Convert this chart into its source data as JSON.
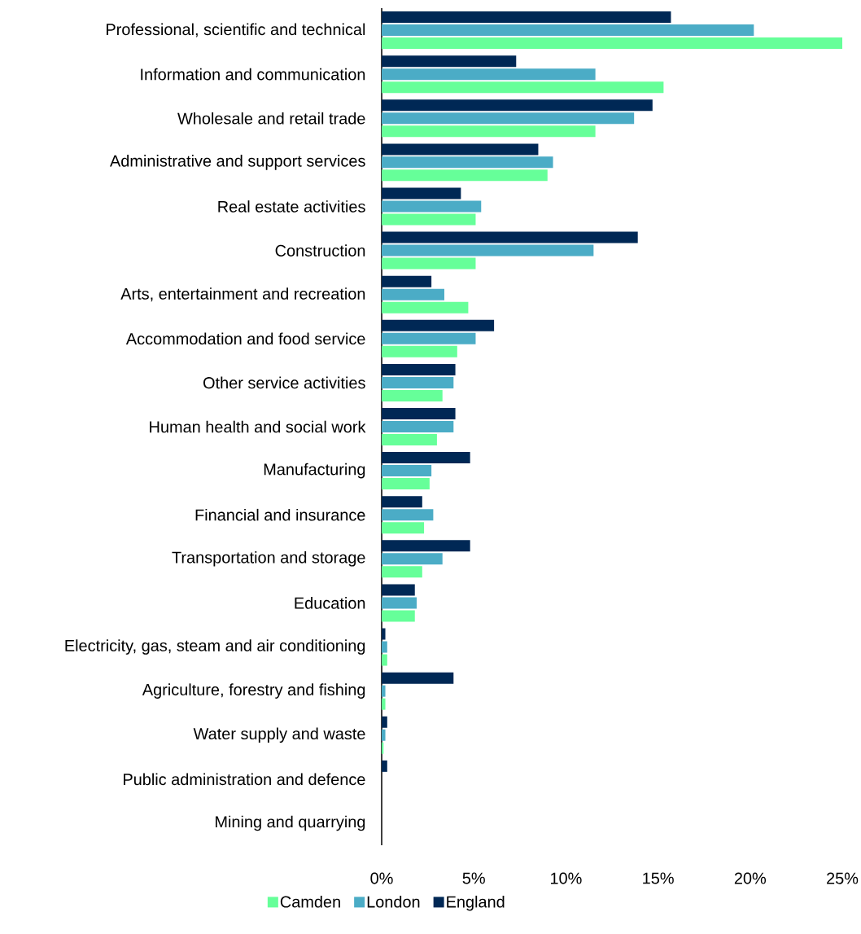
{
  "chart_data": {
    "type": "bar",
    "orientation": "horizontal",
    "categories": [
      "Professional, scientific and technical",
      "Information and communication",
      "Wholesale and retail trade",
      "Administrative and support services",
      "Real estate activities",
      "Construction",
      "Arts, entertainment and recreation",
      "Accommodation and food service",
      "Other service activities",
      "Human health and social work",
      "Manufacturing",
      "Financial and insurance",
      "Transportation and storage",
      "Education",
      "Electricity, gas, steam and air conditioning",
      "Agriculture, forestry and fishing",
      "Water supply and waste",
      "Public administration and defence",
      "Mining and quarrying"
    ],
    "series": [
      {
        "name": "Camden",
        "color": "#66ff99",
        "values": [
          25.0,
          15.3,
          11.6,
          9.0,
          5.1,
          5.1,
          4.7,
          4.1,
          3.3,
          3.0,
          2.6,
          2.3,
          2.2,
          1.8,
          0.3,
          0.2,
          0.1,
          0,
          0
        ]
      },
      {
        "name": "London",
        "color": "#4bacc6",
        "values": [
          20.2,
          11.6,
          13.7,
          9.3,
          5.4,
          11.5,
          3.4,
          5.1,
          3.9,
          3.9,
          2.7,
          2.8,
          3.3,
          1.9,
          0.3,
          0.2,
          0.2,
          0,
          0
        ]
      },
      {
        "name": "England",
        "color": "#002855",
        "values": [
          15.7,
          7.3,
          14.7,
          8.5,
          4.3,
          13.9,
          2.7,
          6.1,
          4.0,
          4.0,
          4.8,
          2.2,
          4.8,
          1.8,
          0.2,
          3.9,
          0.3,
          0.3,
          0
        ]
      }
    ],
    "xlim": [
      0,
      25
    ],
    "xticks": [
      {
        "value": 0,
        "label": "0%"
      },
      {
        "value": 5,
        "label": "5%"
      },
      {
        "value": 10,
        "label": "10%"
      },
      {
        "value": 15,
        "label": "15%"
      },
      {
        "value": 20,
        "label": "20%"
      },
      {
        "value": 25,
        "label": "25%"
      }
    ],
    "legend": "bottom"
  }
}
